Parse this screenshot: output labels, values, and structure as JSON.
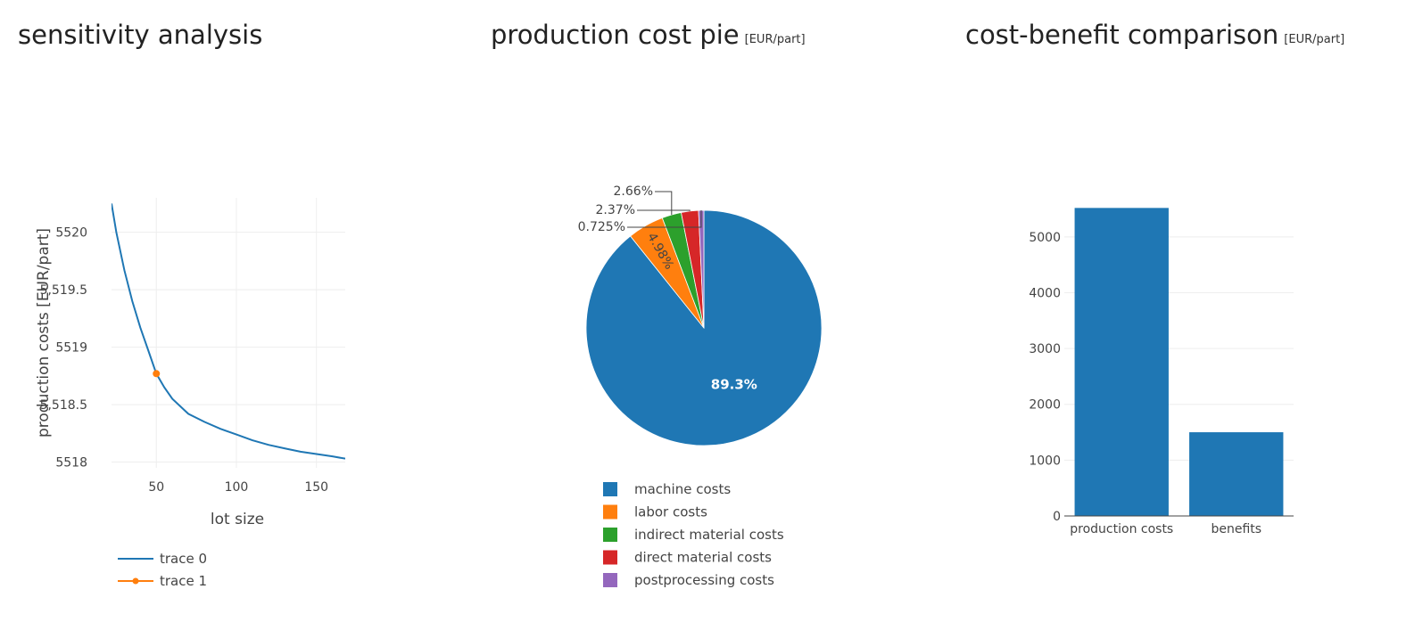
{
  "panels": {
    "sensitivity": {
      "title": "sensitivity analysis"
    },
    "pie": {
      "title": "production cost pie",
      "unit": "[EUR/part]"
    },
    "comparison": {
      "title": "cost-benefit comparison",
      "unit": "[EUR/part]"
    }
  },
  "chart_data": [
    {
      "type": "line",
      "title": "sensitivity analysis",
      "xlabel": "lot size",
      "ylabel": "production costs [EUR/part]",
      "xlim": [
        22,
        168
      ],
      "ylim": [
        5517.95,
        5520.3
      ],
      "x_ticks": [
        50,
        100,
        150
      ],
      "x_tick_labels": [
        "50",
        "100",
        "150"
      ],
      "y_ticks": [
        5518,
        5518.5,
        5519,
        5519.5,
        5520
      ],
      "y_tick_labels": [
        "5518",
        "5,518.5",
        "5519",
        "5,519.5",
        "5520"
      ],
      "grid": true,
      "legend_position": "bottom",
      "series": [
        {
          "name": "trace 0",
          "color": "#1f77b4",
          "mode": "line",
          "x": [
            22,
            25,
            30,
            35,
            40,
            45,
            50,
            55,
            60,
            70,
            80,
            90,
            100,
            110,
            120,
            130,
            140,
            150,
            160,
            168
          ],
          "y": [
            5520.25,
            5520.0,
            5519.67,
            5519.4,
            5519.17,
            5518.97,
            5518.77,
            5518.65,
            5518.55,
            5518.42,
            5518.35,
            5518.29,
            5518.24,
            5518.19,
            5518.15,
            5518.12,
            5518.09,
            5518.07,
            5518.05,
            5518.03
          ]
        },
        {
          "name": "trace 1",
          "color": "#ff7f0e",
          "mode": "line+marker",
          "x": [
            50
          ],
          "y": [
            5518.77
          ]
        }
      ]
    },
    {
      "type": "pie",
      "title": "production cost pie",
      "unit": "[EUR/part]",
      "legend_position": "bottom",
      "slices": [
        {
          "label": "machine costs",
          "value": 89.3,
          "display": "89.3%",
          "color": "#1f77b4"
        },
        {
          "label": "labor costs",
          "value": 4.98,
          "display": "4.98%",
          "color": "#ff7f0e"
        },
        {
          "label": "indirect material costs",
          "value": 2.66,
          "display": "2.66%",
          "color": "#2ca02c"
        },
        {
          "label": "direct material costs",
          "value": 2.37,
          "display": "2.37%",
          "color": "#d62728"
        },
        {
          "label": "postprocessing costs",
          "value": 0.725,
          "display": "0.725%",
          "color": "#9467bd"
        }
      ]
    },
    {
      "type": "bar",
      "title": "cost-benefit comparison",
      "unit": "[EUR/part]",
      "categories": [
        "production costs",
        "benefits"
      ],
      "values": [
        5518.8,
        1500
      ],
      "color": "#1f77b4",
      "ylim": [
        0,
        5700
      ],
      "y_ticks": [
        0,
        1000,
        2000,
        3000,
        4000,
        5000
      ],
      "y_tick_labels": [
        "0",
        "1000",
        "2000",
        "3000",
        "4000",
        "5000"
      ],
      "grid": true
    }
  ]
}
